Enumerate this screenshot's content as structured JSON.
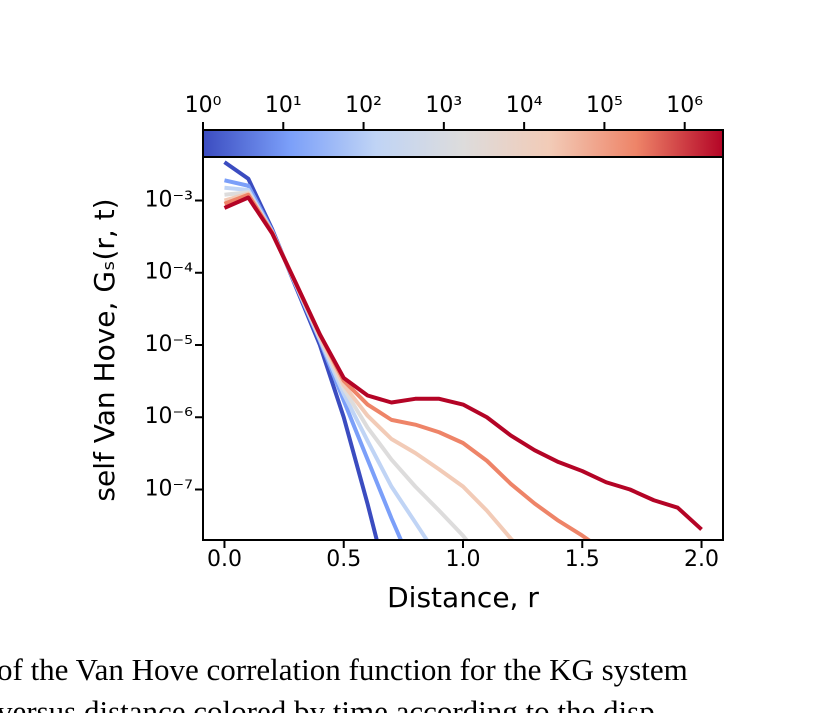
{
  "chart_data": {
    "type": "line",
    "xlabel": "Distance, r",
    "ylabel": "self Van Hove, Gₛ(r, t)",
    "x": [
      0,
      0.1,
      0.2,
      0.3,
      0.4,
      0.5,
      0.6,
      0.7,
      0.8,
      0.9,
      1.0,
      1.1,
      1.2,
      1.3,
      1.4,
      1.5,
      1.6,
      1.7,
      1.8,
      1.9,
      2.0
    ],
    "xlim": [
      -0.09,
      2.09
    ],
    "xticks": [
      {
        "value": 0,
        "label": "0.0"
      },
      0.5,
      {
        "value": 1,
        "label": "1.0"
      },
      1.5,
      {
        "value": 2,
        "label": "2.0"
      }
    ],
    "ylog": true,
    "ylim": [
      2e-08,
      0.004
    ],
    "yticks": [
      {
        "value": 0.001,
        "label": "10⁻³"
      },
      {
        "value": 0.0001,
        "label": "10⁻⁴"
      },
      {
        "value": 1e-05,
        "label": "10⁻⁵"
      },
      {
        "value": 1e-06,
        "label": "10⁻⁶"
      },
      {
        "value": 1e-07,
        "label": "10⁻⁷"
      }
    ],
    "series": [
      {
        "color": "#3b4cc0",
        "values": [
          0.0034,
          0.002,
          0.0004,
          6.3e-05,
          1e-05,
          1e-06,
          6.3e-08,
          3.2e-09,
          null,
          null,
          null,
          null,
          null,
          null,
          null,
          null,
          null,
          null,
          null,
          null,
          null
        ]
      },
      {
        "color": "#7b9ff9",
        "values": [
          0.0019,
          0.0016,
          0.00038,
          6.6e-05,
          1.15e-05,
          1.7e-06,
          2.6e-07,
          4e-08,
          7e-09,
          null,
          null,
          null,
          null,
          null,
          null,
          null,
          null,
          null,
          null,
          null,
          null
        ]
      },
      {
        "color": "#c0d4f5",
        "values": [
          0.0015,
          0.0014,
          0.00037,
          6.8e-05,
          1.2e-05,
          2.1e-06,
          4.7e-07,
          1.1e-07,
          3.5e-08,
          1.1e-08,
          null,
          null,
          null,
          null,
          null,
          null,
          null,
          null,
          null,
          null,
          null
        ]
      },
      {
        "color": "#dddcdc",
        "values": [
          0.0012,
          0.0013,
          0.00036,
          6.9e-05,
          1.3e-05,
          2.5e-06,
          7.2e-07,
          2.6e-07,
          1.1e-07,
          5.1e-08,
          2.3e-08,
          9e-09,
          null,
          null,
          null,
          null,
          null,
          null,
          null,
          null,
          null
        ]
      },
      {
        "color": "#f2cbb7",
        "values": [
          0.001,
          0.00125,
          0.00036,
          6.9e-05,
          1.3e-05,
          2.8e-06,
          1.05e-06,
          5e-07,
          3.2e-07,
          1.9e-07,
          1.1e-07,
          5.1e-08,
          2.1e-08,
          9.5e-09,
          null,
          null,
          null,
          null,
          null,
          null,
          null
        ]
      },
      {
        "color": "#ee8468",
        "values": [
          0.0009,
          0.0012,
          0.00036,
          7.1e-05,
          1.4e-05,
          3.2e-06,
          1.5e-06,
          9.2e-07,
          7.9e-07,
          6.2e-07,
          4.4e-07,
          2.5e-07,
          1.2e-07,
          6.4e-08,
          3.7e-08,
          2.3e-08,
          1.35e-08,
          null,
          null,
          null,
          null
        ]
      },
      {
        "color": "#b40426",
        "values": [
          0.00079,
          0.0011,
          0.00035,
          7.1e-05,
          1.4e-05,
          3.5e-06,
          2e-06,
          1.6e-06,
          1.8e-06,
          1.8e-06,
          1.5e-06,
          1e-06,
          5.6e-07,
          3.5e-07,
          2.4e-07,
          1.8e-07,
          1.26e-07,
          1e-07,
          7.1e-08,
          5.6e-08,
          2.8e-08
        ]
      }
    ],
    "colorbar": {
      "log": true,
      "lim": [
        1,
        3000000
      ],
      "ticks": [
        {
          "value": 1,
          "label": "10⁰"
        },
        {
          "value": 10,
          "label": "10¹"
        },
        {
          "value": 100,
          "label": "10²"
        },
        {
          "value": 1000,
          "label": "10³"
        },
        {
          "value": 10000,
          "label": "10⁴"
        },
        {
          "value": 100000,
          "label": "10⁵"
        },
        {
          "value": 1000000,
          "label": "10⁶"
        }
      ],
      "colors": [
        "#3b4cc0",
        "#7b9ff9",
        "#c0d4f5",
        "#dddcdc",
        "#f2cbb7",
        "#ee8468",
        "#b40426"
      ]
    }
  },
  "caption": [
    "of the Van Hove correlation function for the KG system",
    "versus distance colored by time according to the disp"
  ]
}
